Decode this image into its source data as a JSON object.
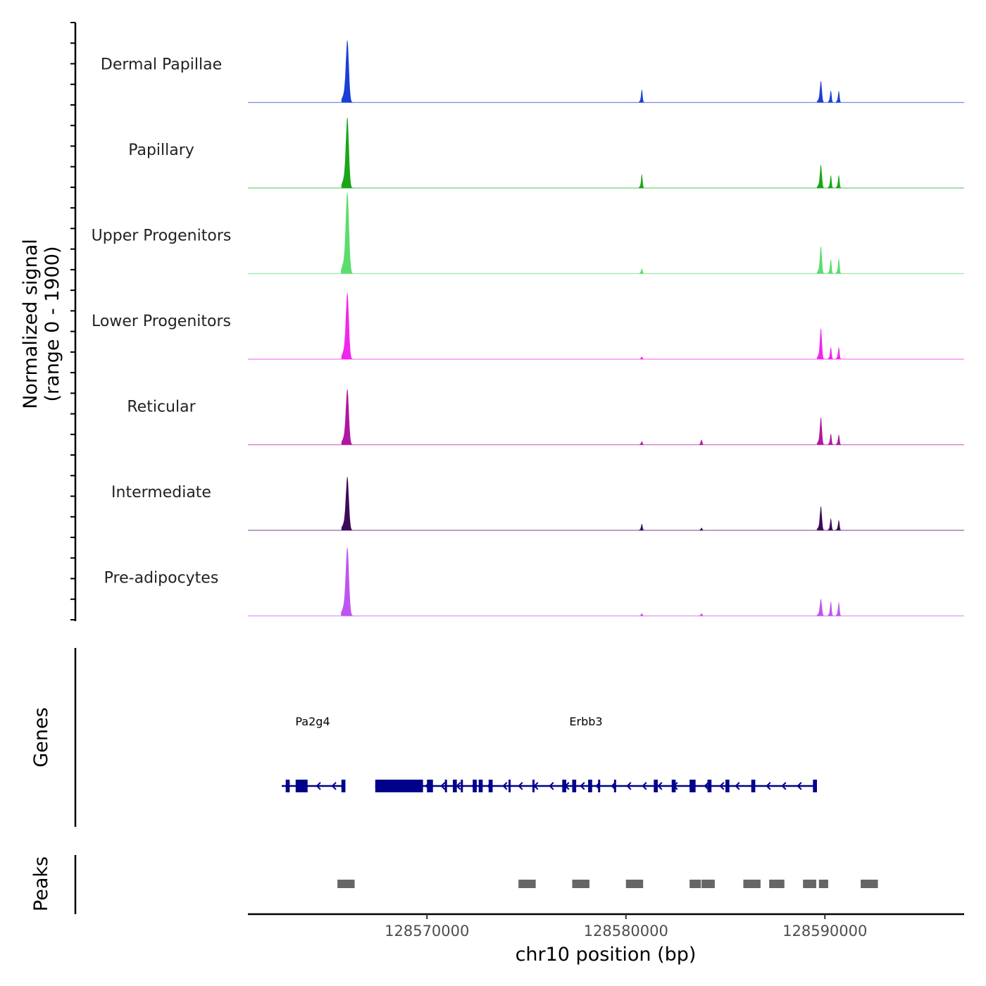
{
  "chart_data": {
    "type": "area",
    "chromosome": "chr10",
    "xlabel": "chr10 position (bp)",
    "xlim": [
      128561000,
      128597000
    ],
    "x_ticks": [
      128570000,
      128580000,
      128590000
    ],
    "x_tick_labels": [
      "128570000",
      "128580000",
      "128590000"
    ],
    "coverage": {
      "ylabel_line1": "Normalized signal",
      "ylabel_line2": "(range 0 - 1900)",
      "ylim": [
        0,
        1900
      ],
      "series": [
        {
          "name": "Dermal Papillae",
          "color": "#1a3fd6",
          "peaks": [
            [
              128566000,
              1450,
              300
            ],
            [
              128580800,
              300,
              150
            ],
            [
              128589800,
              500,
              200
            ],
            [
              128590300,
              280,
              150
            ],
            [
              128590700,
              270,
              150
            ]
          ]
        },
        {
          "name": "Papillary",
          "color": "#1aa619",
          "peaks": [
            [
              128566000,
              1650,
              300
            ],
            [
              128580800,
              320,
              150
            ],
            [
              128589800,
              540,
              200
            ],
            [
              128590300,
              300,
              150
            ],
            [
              128590700,
              300,
              150
            ]
          ]
        },
        {
          "name": "Upper Progenitors",
          "color": "#5cdc6c",
          "peaks": [
            [
              128566000,
              1900,
              320
            ],
            [
              128580800,
              120,
              150
            ],
            [
              128589800,
              640,
              200
            ],
            [
              128590300,
              340,
              150
            ],
            [
              128590700,
              360,
              150
            ]
          ]
        },
        {
          "name": "Lower Progenitors",
          "color": "#f126ec",
          "peaks": [
            [
              128566000,
              1550,
              300
            ],
            [
              128580800,
              60,
              150
            ],
            [
              128589800,
              720,
              200
            ],
            [
              128590300,
              280,
              150
            ],
            [
              128590700,
              280,
              150
            ]
          ]
        },
        {
          "name": "Reticular",
          "color": "#b0169f",
          "peaks": [
            [
              128566000,
              1300,
              300
            ],
            [
              128580800,
              80,
              150
            ],
            [
              128583800,
              120,
              150
            ],
            [
              128589800,
              640,
              200
            ],
            [
              128590300,
              260,
              150
            ],
            [
              128590700,
              240,
              150
            ]
          ]
        },
        {
          "name": "Intermediate",
          "color": "#3d0a5a",
          "peaks": [
            [
              128566000,
              1250,
              300
            ],
            [
              128580800,
              150,
              150
            ],
            [
              128583800,
              60,
              150
            ],
            [
              128589800,
              560,
              200
            ],
            [
              128590300,
              280,
              150
            ],
            [
              128590700,
              240,
              150
            ]
          ]
        },
        {
          "name": "Pre-adipocytes",
          "color": "#bf55f0",
          "peaks": [
            [
              128566000,
              1600,
              320
            ],
            [
              128580800,
              60,
              150
            ],
            [
              128583800,
              60,
              150
            ],
            [
              128589800,
              400,
              200
            ],
            [
              128590300,
              340,
              150
            ],
            [
              128590700,
              320,
              150
            ]
          ]
        }
      ]
    },
    "genes": {
      "label": "Genes",
      "color": "#00008b",
      "items": [
        {
          "name": "Pa2g4",
          "start": 128562700,
          "end": 128565900,
          "strand": "-",
          "exons": [
            [
              128562900,
              128563100
            ],
            [
              128563400,
              128564000
            ],
            [
              128565700,
              128565900
            ]
          ]
        },
        {
          "name": "Erbb3",
          "start": 128567400,
          "end": 128589500,
          "strand": "-",
          "exons": [
            [
              128567400,
              128569800
            ],
            [
              128570000,
              128570300
            ],
            [
              128570900,
              128571000
            ],
            [
              128571300,
              128571500
            ],
            [
              128571700,
              128571800
            ],
            [
              128572300,
              128572500
            ],
            [
              128572600,
              128572800
            ],
            [
              128573100,
              128573300
            ],
            [
              128574100,
              128574200
            ],
            [
              128575300,
              128575400
            ],
            [
              128576800,
              128577000
            ],
            [
              128577300,
              128577500
            ],
            [
              128578100,
              128578300
            ],
            [
              128578600,
              128578700
            ],
            [
              128579400,
              128579500
            ],
            [
              128581400,
              128581600
            ],
            [
              128582300,
              128582500
            ],
            [
              128583200,
              128583500
            ],
            [
              128584100,
              128584300
            ],
            [
              128585000,
              128585200
            ],
            [
              128586300,
              128586500
            ],
            [
              128589400,
              128589600
            ]
          ]
        }
      ]
    },
    "peaks": {
      "label": "Peaks",
      "color": "#666666",
      "regions": [
        [
          128565500,
          128566400
        ],
        [
          128574600,
          128575500
        ],
        [
          128577300,
          128578200
        ],
        [
          128580000,
          128580900
        ],
        [
          128583200,
          128583800
        ],
        [
          128583800,
          128584500
        ],
        [
          128585900,
          128586800
        ],
        [
          128587200,
          128588000
        ],
        [
          128588900,
          128589600
        ],
        [
          128589700,
          128590200
        ],
        [
          128591800,
          128592700
        ]
      ]
    }
  }
}
